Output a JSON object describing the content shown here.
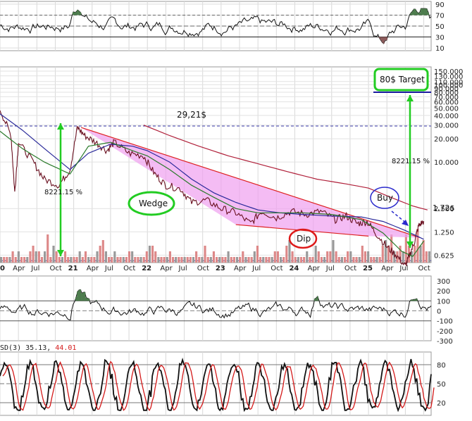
{
  "chart_data": [
    {
      "type": "line",
      "panel": "rsi",
      "y_ticks": [
        "90",
        "70",
        "50",
        "30",
        "10"
      ],
      "ylim": [
        5,
        95
      ],
      "grid": true
    },
    {
      "type": "line",
      "panel": "price",
      "scale": "log",
      "y_ticks": [
        "150.000",
        "130.000",
        "110.000",
        "100.000",
        "90.000",
        "80.000",
        "70.000",
        "60.000",
        "50.000",
        "40.000",
        "30.000",
        "20.000",
        "10.000",
        "2.500",
        "1.250",
        "0.625"
      ],
      "x_ticks": [
        "0",
        "Apr",
        "Jul",
        "Oct",
        "21",
        "Apr",
        "Jul",
        "Oct",
        "22",
        "Apr",
        "Jul",
        "Oct",
        "23",
        "Apr",
        "Jul",
        "Oct",
        "24",
        "Apr",
        "Jul",
        "Oct",
        "25",
        "Apr",
        "Jul",
        "Oct"
      ],
      "series": [
        {
          "name": "",
          "color": "#6a1020",
          "values": [
            [
              2020.0,
              48
            ],
            [
              2020.15,
              22
            ],
            [
              2020.2,
              4
            ],
            [
              2020.25,
              18
            ],
            [
              2020.45,
              10
            ],
            [
              2020.6,
              6
            ],
            [
              2020.8,
              5
            ],
            [
              2020.95,
              8
            ],
            [
              2021.05,
              28
            ],
            [
              2021.15,
              22
            ],
            [
              2021.3,
              18
            ],
            [
              2021.45,
              14
            ],
            [
              2021.55,
              18
            ],
            [
              2021.75,
              13
            ],
            [
              2021.95,
              12
            ],
            [
              2022.1,
              7
            ],
            [
              2022.25,
              5
            ],
            [
              2022.45,
              4.5
            ],
            [
              2022.6,
              3
            ],
            [
              2022.8,
              3.2
            ],
            [
              2023.0,
              2.5
            ],
            [
              2023.2,
              2.2
            ],
            [
              2023.4,
              1.6
            ],
            [
              2023.55,
              2.3
            ],
            [
              2023.75,
              1.9
            ],
            [
              2023.95,
              2.3
            ],
            [
              2024.15,
              2.1
            ],
            [
              2024.35,
              2.3
            ],
            [
              2024.55,
              1.8
            ],
            [
              2024.7,
              2.0
            ],
            [
              2024.85,
              1.6
            ],
            [
              2024.98,
              1.7
            ],
            [
              2025.1,
              1.2
            ],
            [
              2025.25,
              0.8
            ],
            [
              2025.38,
              0.62
            ],
            [
              2025.5,
              0.45
            ],
            [
              2025.55,
              0.6
            ],
            [
              2025.62,
              0.9
            ],
            [
              2025.68,
              1.5
            ],
            [
              2025.75,
              1.72
            ]
          ]
        },
        {
          "name": "",
          "color": "#2a2a9a",
          "values": [
            [
              2020.0,
              42
            ],
            [
              2020.3,
              26
            ],
            [
              2020.6,
              15
            ],
            [
              2020.95,
              8
            ],
            [
              2021.2,
              13
            ],
            [
              2021.5,
              17
            ],
            [
              2021.8,
              16
            ],
            [
              2022.0,
              14
            ],
            [
              2022.3,
              10
            ],
            [
              2022.6,
              6
            ],
            [
              2022.9,
              4
            ],
            [
              2023.2,
              3
            ],
            [
              2023.5,
              2.4
            ],
            [
              2023.8,
              2.2
            ],
            [
              2024.1,
              2.1
            ],
            [
              2024.5,
              2.0
            ],
            [
              2024.9,
              1.95
            ],
            [
              2025.2,
              1.7
            ],
            [
              2025.5,
              1.3
            ],
            [
              2025.75,
              1.0
            ]
          ]
        },
        {
          "name": "",
          "color": "#2a7a2a",
          "values": [
            [
              2020.0,
              25
            ],
            [
              2020.3,
              15
            ],
            [
              2020.6,
              10
            ],
            [
              2020.95,
              7
            ],
            [
              2021.2,
              16
            ],
            [
              2021.5,
              18
            ],
            [
              2021.8,
              14
            ],
            [
              2022.0,
              12
            ],
            [
              2022.3,
              8
            ],
            [
              2022.6,
              5
            ],
            [
              2022.9,
              3.5
            ],
            [
              2023.2,
              2.5
            ],
            [
              2023.5,
              2.2
            ],
            [
              2023.8,
              2.2
            ],
            [
              2024.1,
              2.2
            ],
            [
              2024.5,
              2.1
            ],
            [
              2024.9,
              1.8
            ],
            [
              2025.2,
              1.2
            ],
            [
              2025.45,
              0.7
            ],
            [
              2025.6,
              0.6
            ],
            [
              2025.75,
              0.95
            ]
          ]
        },
        {
          "name": "",
          "color": "#b0203a",
          "values": [
            [
              2021.95,
              30
            ],
            [
              2022.3,
              22
            ],
            [
              2022.7,
              16
            ],
            [
              2023.1,
              12
            ],
            [
              2023.5,
              9.5
            ],
            [
              2023.9,
              7.5
            ],
            [
              2024.3,
              6
            ],
            [
              2024.7,
              5.2
            ],
            [
              2025.0,
              4.6
            ],
            [
              2025.3,
              3.5
            ],
            [
              2025.6,
              2.7
            ],
            [
              2025.8,
              2.4
            ]
          ]
        }
      ],
      "volume": [
        1,
        1,
        1,
        1,
        2,
        1,
        2,
        1,
        1,
        1,
        2,
        3,
        2,
        2,
        1,
        2,
        5,
        1,
        3,
        2,
        1,
        1,
        2,
        1,
        1,
        1,
        1,
        2,
        1,
        2,
        1,
        1,
        1,
        2,
        3,
        4,
        2,
        1,
        1,
        2,
        1,
        1,
        1,
        1,
        2,
        2,
        1,
        1,
        1,
        1,
        2,
        3,
        3,
        2,
        1,
        1,
        1,
        1,
        2,
        1,
        1,
        1,
        1,
        1,
        1,
        1,
        1,
        2,
        1,
        1,
        3,
        1,
        1,
        2,
        1,
        1,
        1,
        1,
        2,
        1,
        1,
        1,
        1,
        2,
        1,
        1,
        1,
        2,
        3,
        1,
        1,
        1,
        1,
        1,
        2,
        2,
        1,
        1,
        3,
        4,
        2,
        1,
        1,
        1,
        1,
        2,
        1,
        1,
        3,
        2,
        1,
        1,
        2,
        2,
        4,
        2,
        1,
        1,
        1,
        2,
        2,
        1,
        1,
        1,
        3,
        2,
        2,
        1,
        1,
        1,
        1,
        3,
        4,
        3,
        5,
        2,
        2,
        3,
        2,
        5,
        3,
        2,
        3,
        6,
        3,
        4,
        2,
        2
      ],
      "annotations": {
        "price_label": "29,21$",
        "pct1": "8221.15 %",
        "pct2": "8221.15 %",
        "last_price": "1,72$",
        "target": "80$ Target",
        "buy": "Buy",
        "dip": "Dip",
        "wedge": "Wedge"
      },
      "colors": {
        "wedge_fill": "#f0a0f0",
        "wedge_edge": "#dd2020",
        "arrow": "#22cc22",
        "target_line": "#1a1aa0",
        "dashed": "#3a3aa8"
      }
    },
    {
      "type": "area",
      "panel": "cci",
      "y_ticks": [
        "300",
        "200",
        "100",
        "0",
        "-100",
        "-200",
        "-300"
      ],
      "ylim": [
        -300,
        350
      ],
      "x_ticks": [
        "0",
        "Apr",
        "Jul",
        "Oct",
        "21",
        "Apr",
        "Jul",
        "Oct",
        "22",
        "Apr",
        "Jul",
        "Oct",
        "23",
        "Apr",
        "Jul",
        "Oct",
        "24",
        "Apr",
        "Jul",
        "Oct",
        "25",
        "Apr",
        "Jul",
        "Oct"
      ]
    },
    {
      "type": "line",
      "panel": "stoch",
      "title": "SD(3) 35.13, 44.01",
      "title_parts": [
        "SD(3) ",
        "35.13",
        ", ",
        "44.01"
      ],
      "y_ticks": [
        "80",
        "50",
        "20"
      ],
      "ylim": [
        0,
        100
      ],
      "series_colors": [
        "#111111",
        "#d41a1a"
      ]
    }
  ]
}
